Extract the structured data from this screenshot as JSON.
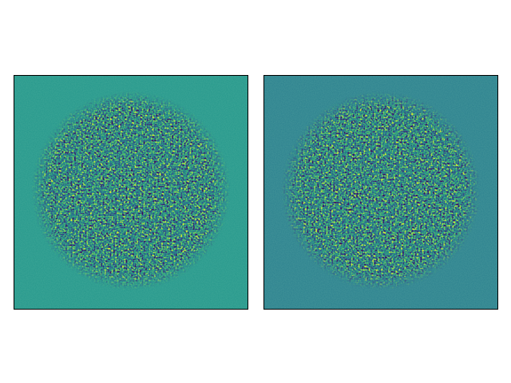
{
  "chart_data": [
    {
      "type": "image",
      "colormap": "viridis",
      "background": "#23968b"
    },
    {
      "type": "image",
      "colormap": "viridis",
      "background": "#2a7f8e"
    }
  ]
}
